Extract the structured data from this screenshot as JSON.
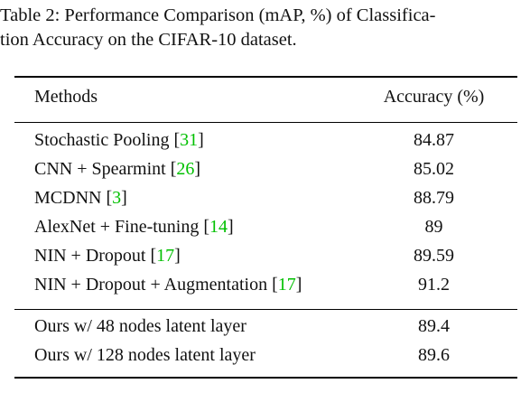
{
  "caption": {
    "line1": "Table 2: Performance Comparison (mAP, %) of Classifica-",
    "line2": "tion Accuracy on the CIFAR-10 dataset."
  },
  "table": {
    "headers": {
      "method": "Methods",
      "accuracy": "Accuracy (%)"
    },
    "group1": [
      {
        "method": "Stochastic Pooling [",
        "cite": "31",
        "close": "]",
        "accuracy": "84.87"
      },
      {
        "method": "CNN + Spearmint [",
        "cite": "26",
        "close": "]",
        "accuracy": "85.02"
      },
      {
        "method": "MCDNN [",
        "cite": "3",
        "close": "]",
        "accuracy": "88.79"
      },
      {
        "method": "AlexNet + Fine-tuning [",
        "cite": "14",
        "close": "]",
        "accuracy": "89"
      },
      {
        "method": "NIN + Dropout [",
        "cite": "17",
        "close": "]",
        "accuracy": "89.59"
      },
      {
        "method": "NIN + Dropout + Augmentation [",
        "cite": "17",
        "close": "]",
        "accuracy": "91.2"
      }
    ],
    "group2": [
      {
        "method": "Ours w/ 48 nodes latent layer",
        "accuracy": "89.4"
      },
      {
        "method": "Ours w/ 128 nodes latent layer",
        "accuracy": "89.6"
      }
    ]
  },
  "colors": {
    "citation": "#00c000",
    "text": "#111111",
    "rule": "#000000"
  }
}
